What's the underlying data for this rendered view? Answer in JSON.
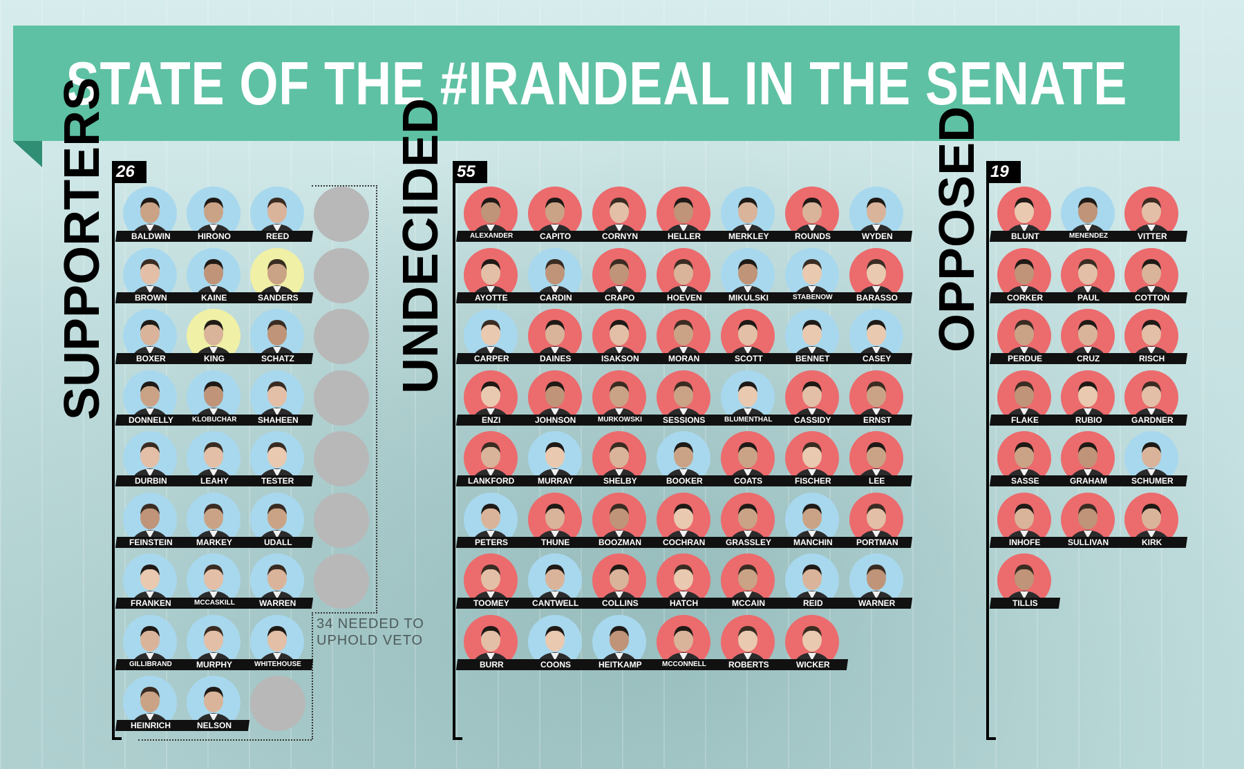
{
  "title": "STATE OF THE #IRANDEAL IN THE SENATE",
  "colors": {
    "banner": "#5ec1a3",
    "supporter_blue": "#a8d8ee",
    "republican_red": "#ec6b6d",
    "independent_yellow": "#f0f0a6",
    "placeholder_gray": "#b8b8b8"
  },
  "supporters": {
    "label": "SUPPORTERS",
    "count": "26",
    "veto_note_line1": "34 NEEDED TO",
    "veto_note_line2": "UPHOLD VETO",
    "names": [
      "BALDWIN",
      "HIRONO",
      "REED",
      "BROWN",
      "KAINE",
      "SANDERS",
      "BOXER",
      "KING",
      "SCHATZ",
      "DONNELLY",
      "KLOBUCHAR",
      "SHAHEEN",
      "DURBIN",
      "LEAHY",
      "TESTER",
      "FEINSTEIN",
      "MARKEY",
      "UDALL",
      "FRANKEN",
      "MCCASKILL",
      "WARREN",
      "GILLIBRAND",
      "MURPHY",
      "WHITEHOUSE",
      "HEINRICH",
      "NELSON"
    ]
  },
  "undecided": {
    "label": "UNDECIDED",
    "count": "55",
    "names": [
      "ALEXANDER",
      "CAPITO",
      "CORNYN",
      "HELLER",
      "MERKLEY",
      "ROUNDS",
      "WYDEN",
      "AYOTTE",
      "CARDIN",
      "CRAPO",
      "HOEVEN",
      "MIKULSKI",
      "STABENOW",
      "BARASSO",
      "CARPER",
      "DAINES",
      "ISAKSON",
      "MORAN",
      "SCOTT",
      "BENNET",
      "CASEY",
      "ENZI",
      "JOHNSON",
      "MURKOWSKI",
      "SESSIONS",
      "BLUMENTHAL",
      "CASSIDY",
      "ERNST",
      "LANKFORD",
      "MURRAY",
      "SHELBY",
      "BOOKER",
      "COATS",
      "FISCHER",
      "LEE",
      "PETERS",
      "THUNE",
      "BOOZMAN",
      "COCHRAN",
      "GRASSLEY",
      "MANCHIN",
      "PORTMAN",
      "TOOMEY",
      "CANTWELL",
      "COLLINS",
      "HATCH",
      "MCCAIN",
      "REID",
      "WARNER",
      "BURR",
      "COONS",
      "HEITKAMP",
      "MCCONNELL",
      "ROBERTS",
      "WICKER"
    ]
  },
  "opposed": {
    "label": "OPPOSED",
    "count": "19",
    "names": [
      "BLUNT",
      "MENENDEZ",
      "VITTER",
      "CORKER",
      "PAUL",
      "COTTON",
      "PERDUE",
      "CRUZ",
      "RISCH",
      "FLAKE",
      "RUBIO",
      "GARDNER",
      "SASSE",
      "GRAHAM",
      "SCHUMER",
      "INHOFE",
      "SULLIVAN",
      "KIRK",
      "TILLIS"
    ]
  }
}
